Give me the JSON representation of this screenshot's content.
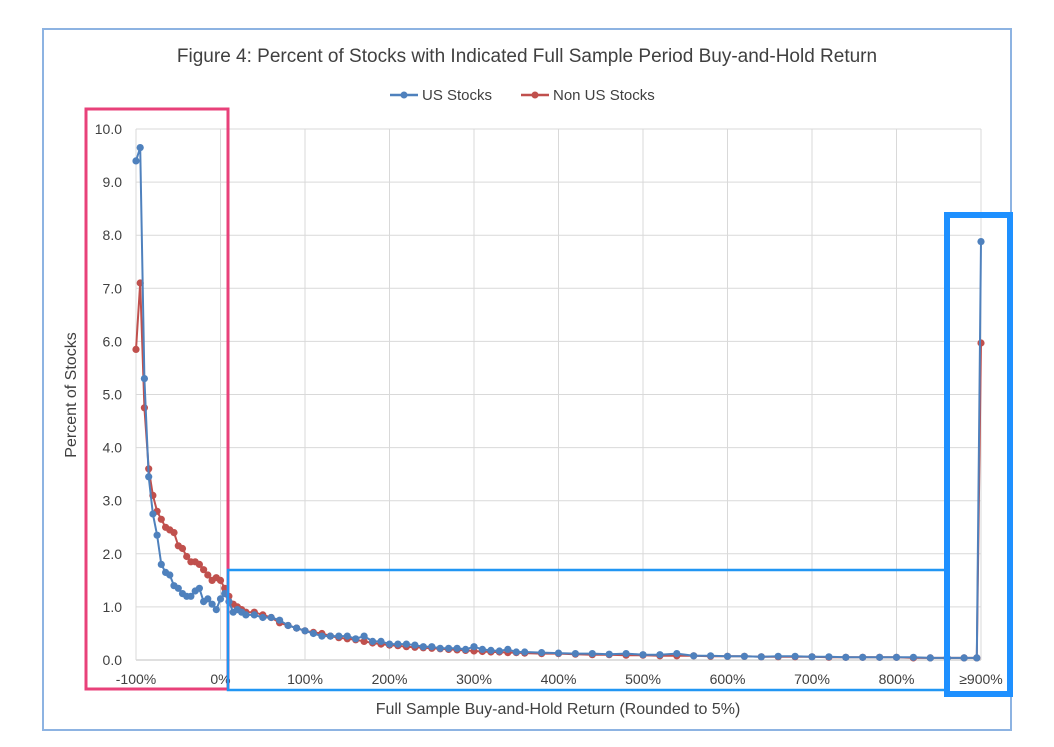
{
  "chart_data": {
    "type": "line",
    "title": "Figure 4: Percent of Stocks with Indicated Full Sample Period Buy-and-Hold Return",
    "xlabel": "Full Sample Buy-and-Hold Return (Rounded to 5%)",
    "ylabel": "Percent of Stocks",
    "xlim": [
      -100,
      900
    ],
    "ylim": [
      0,
      10
    ],
    "x_tick_labels": [
      "-100%",
      "0%",
      "100%",
      "200%",
      "300%",
      "400%",
      "500%",
      "600%",
      "700%",
      "800%",
      "≥900%"
    ],
    "y_tick_labels": [
      "0.0",
      "1.0",
      "2.0",
      "3.0",
      "4.0",
      "5.0",
      "6.0",
      "7.0",
      "8.0",
      "9.0",
      "10.0"
    ],
    "grid": true,
    "legend_position": "top-center",
    "series": [
      {
        "name": "US Stocks",
        "color": "#4f81bd",
        "points": [
          [
            -100,
            9.4
          ],
          [
            -95,
            9.65
          ],
          [
            -90,
            5.3
          ],
          [
            -85,
            3.45
          ],
          [
            -80,
            2.75
          ],
          [
            -75,
            2.35
          ],
          [
            -70,
            1.8
          ],
          [
            -65,
            1.65
          ],
          [
            -60,
            1.6
          ],
          [
            -55,
            1.4
          ],
          [
            -50,
            1.35
          ],
          [
            -45,
            1.25
          ],
          [
            -40,
            1.2
          ],
          [
            -35,
            1.2
          ],
          [
            -30,
            1.3
          ],
          [
            -25,
            1.35
          ],
          [
            -20,
            1.1
          ],
          [
            -15,
            1.15
          ],
          [
            -10,
            1.05
          ],
          [
            -5,
            0.95
          ],
          [
            0,
            1.15
          ],
          [
            5,
            1.25
          ],
          [
            10,
            1.1
          ],
          [
            15,
            0.9
          ],
          [
            20,
            0.95
          ],
          [
            25,
            0.9
          ],
          [
            30,
            0.85
          ],
          [
            40,
            0.85
          ],
          [
            50,
            0.8
          ],
          [
            60,
            0.8
          ],
          [
            70,
            0.75
          ],
          [
            80,
            0.65
          ],
          [
            90,
            0.6
          ],
          [
            100,
            0.55
          ],
          [
            110,
            0.5
          ],
          [
            120,
            0.45
          ],
          [
            130,
            0.45
          ],
          [
            140,
            0.45
          ],
          [
            150,
            0.45
          ],
          [
            160,
            0.4
          ],
          [
            170,
            0.45
          ],
          [
            180,
            0.35
          ],
          [
            190,
            0.35
          ],
          [
            200,
            0.3
          ],
          [
            210,
            0.3
          ],
          [
            220,
            0.3
          ],
          [
            230,
            0.28
          ],
          [
            240,
            0.25
          ],
          [
            250,
            0.25
          ],
          [
            260,
            0.22
          ],
          [
            270,
            0.22
          ],
          [
            280,
            0.22
          ],
          [
            290,
            0.2
          ],
          [
            300,
            0.25
          ],
          [
            310,
            0.2
          ],
          [
            320,
            0.18
          ],
          [
            330,
            0.17
          ],
          [
            340,
            0.2
          ],
          [
            350,
            0.15
          ],
          [
            360,
            0.15
          ],
          [
            380,
            0.14
          ],
          [
            400,
            0.13
          ],
          [
            420,
            0.12
          ],
          [
            440,
            0.12
          ],
          [
            460,
            0.11
          ],
          [
            480,
            0.12
          ],
          [
            500,
            0.1
          ],
          [
            520,
            0.1
          ],
          [
            540,
            0.12
          ],
          [
            560,
            0.08
          ],
          [
            580,
            0.08
          ],
          [
            600,
            0.07
          ],
          [
            620,
            0.07
          ],
          [
            640,
            0.06
          ],
          [
            660,
            0.07
          ],
          [
            680,
            0.07
          ],
          [
            700,
            0.06
          ],
          [
            720,
            0.06
          ],
          [
            740,
            0.05
          ],
          [
            760,
            0.05
          ],
          [
            780,
            0.05
          ],
          [
            800,
            0.05
          ],
          [
            820,
            0.05
          ],
          [
            840,
            0.04
          ],
          [
            860,
            0.04
          ],
          [
            880,
            0.04
          ],
          [
            895,
            0.04
          ],
          [
            900,
            7.88
          ]
        ]
      },
      {
        "name": "Non US Stocks",
        "color": "#c0504d",
        "points": [
          [
            -100,
            5.85
          ],
          [
            -95,
            7.1
          ],
          [
            -90,
            4.75
          ],
          [
            -85,
            3.6
          ],
          [
            -80,
            3.1
          ],
          [
            -75,
            2.8
          ],
          [
            -70,
            2.65
          ],
          [
            -65,
            2.5
          ],
          [
            -60,
            2.45
          ],
          [
            -55,
            2.4
          ],
          [
            -50,
            2.15
          ],
          [
            -45,
            2.1
          ],
          [
            -40,
            1.95
          ],
          [
            -35,
            1.85
          ],
          [
            -30,
            1.85
          ],
          [
            -25,
            1.8
          ],
          [
            -20,
            1.7
          ],
          [
            -15,
            1.6
          ],
          [
            -10,
            1.5
          ],
          [
            -5,
            1.55
          ],
          [
            0,
            1.5
          ],
          [
            5,
            1.35
          ],
          [
            10,
            1.2
          ],
          [
            15,
            1.05
          ],
          [
            20,
            1.0
          ],
          [
            25,
            0.95
          ],
          [
            30,
            0.9
          ],
          [
            40,
            0.9
          ],
          [
            50,
            0.85
          ],
          [
            60,
            0.8
          ],
          [
            70,
            0.7
          ],
          [
            80,
            0.65
          ],
          [
            90,
            0.6
          ],
          [
            100,
            0.55
          ],
          [
            110,
            0.52
          ],
          [
            120,
            0.5
          ],
          [
            130,
            0.45
          ],
          [
            140,
            0.42
          ],
          [
            150,
            0.4
          ],
          [
            160,
            0.38
          ],
          [
            170,
            0.35
          ],
          [
            180,
            0.32
          ],
          [
            190,
            0.3
          ],
          [
            200,
            0.28
          ],
          [
            210,
            0.27
          ],
          [
            220,
            0.25
          ],
          [
            230,
            0.24
          ],
          [
            240,
            0.23
          ],
          [
            250,
            0.22
          ],
          [
            260,
            0.21
          ],
          [
            270,
            0.2
          ],
          [
            280,
            0.19
          ],
          [
            290,
            0.18
          ],
          [
            300,
            0.17
          ],
          [
            310,
            0.16
          ],
          [
            320,
            0.15
          ],
          [
            330,
            0.15
          ],
          [
            340,
            0.14
          ],
          [
            350,
            0.14
          ],
          [
            360,
            0.13
          ],
          [
            380,
            0.12
          ],
          [
            400,
            0.12
          ],
          [
            420,
            0.11
          ],
          [
            440,
            0.1
          ],
          [
            460,
            0.1
          ],
          [
            480,
            0.09
          ],
          [
            500,
            0.09
          ],
          [
            520,
            0.08
          ],
          [
            540,
            0.08
          ],
          [
            560,
            0.08
          ],
          [
            580,
            0.07
          ],
          [
            600,
            0.07
          ],
          [
            620,
            0.07
          ],
          [
            640,
            0.06
          ],
          [
            660,
            0.06
          ],
          [
            680,
            0.06
          ],
          [
            700,
            0.06
          ],
          [
            720,
            0.05
          ],
          [
            740,
            0.05
          ],
          [
            760,
            0.05
          ],
          [
            780,
            0.05
          ],
          [
            800,
            0.05
          ],
          [
            820,
            0.04
          ],
          [
            840,
            0.04
          ],
          [
            860,
            0.04
          ],
          [
            880,
            0.04
          ],
          [
            895,
            0.04
          ],
          [
            900,
            5.97
          ]
        ]
      }
    ]
  },
  "annotations": {
    "highlight_colors": [
      "#e8417a",
      "#2196f3",
      "#1e90ff"
    ]
  }
}
